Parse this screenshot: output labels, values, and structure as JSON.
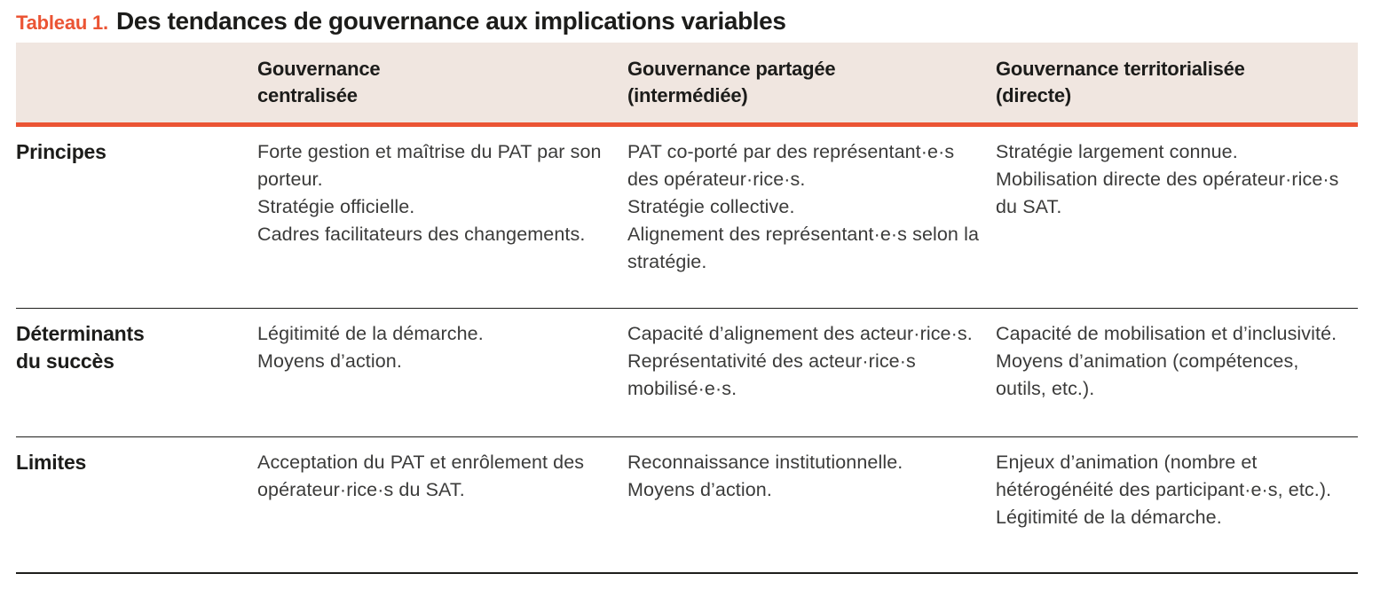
{
  "title": {
    "prefix": "Tableau 1.",
    "text": "Des tendances de gouvernance aux implications variables"
  },
  "colors": {
    "accent_orange": "#EB5434",
    "header_background": "#F0E6E0",
    "body_text": "#3B3B3A",
    "heading_text": "#1C1C1A"
  },
  "table": {
    "header": [
      "",
      "Gouvernance\ncentralisée",
      "Gouvernance partagée\n(intermédiée)",
      "Gouvernance territorialisée\n(directe)"
    ],
    "rows": [
      {
        "id": "principes",
        "label": "Principes",
        "cells": [
          [
            "Forte gestion et maîtrise du PAT par son porteur.",
            "Stratégie officielle.",
            "Cadres facilitateurs des changements."
          ],
          [
            "PAT co-porté par des représentant·e·s des opérateur·rice·s.",
            "Stratégie collective.",
            "Alignement des représentant·e·s selon la stratégie."
          ],
          [
            "Stratégie largement connue.",
            "Mobilisation directe des opérateur·rice·s du SAT."
          ]
        ]
      },
      {
        "id": "determinants",
        "label": "Déterminants\ndu succès",
        "cells": [
          [
            "Légitimité de la démarche.",
            "Moyens d’action."
          ],
          [
            "Capacité d’alignement des acteur·rice·s.",
            "Représentativité des acteur·rice·s mobilisé·e·s."
          ],
          [
            "Capacité de mobilisation et d’inclusivité.",
            "Moyens d’animation (compétences, outils, etc.)."
          ]
        ]
      },
      {
        "id": "limites",
        "label": "Limites",
        "cells": [
          [
            "Acceptation du PAT et enrôlement des opérateur·rice·s du SAT."
          ],
          [
            "Reconnaissance institutionnelle.",
            "Moyens d’action."
          ],
          [
            "Enjeux d’animation (nombre et hétérogénéité des participant·e·s, etc.).",
            "Légitimité de la démarche."
          ]
        ]
      }
    ]
  }
}
